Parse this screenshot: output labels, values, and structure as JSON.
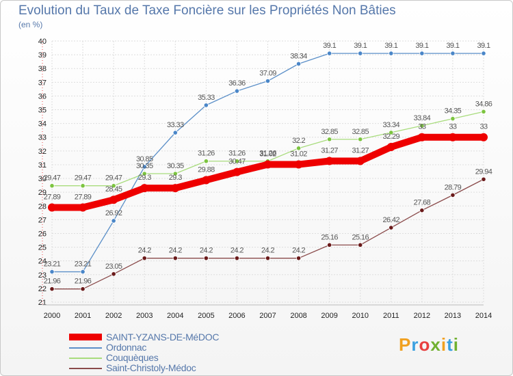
{
  "header": {
    "title": "Evolution du Taux de Taxe Foncière sur les Propriétés Non Bâties",
    "unit": "(en %)"
  },
  "brand": {
    "letters": [
      "P",
      "r",
      "o",
      "x",
      "i",
      "t",
      "i"
    ],
    "colors": [
      "#f0a020",
      "#3aa0e0",
      "#e84040",
      "#70b030",
      "#f0a020",
      "#3aa0e0",
      "#70b030"
    ]
  },
  "chart_data": {
    "type": "line",
    "title": "Evolution du Taux de Taxe Foncière sur les Propriétés Non Bâties",
    "ylabel": "(en %)",
    "xlabel": "",
    "ylim": [
      21,
      40
    ],
    "grid": true,
    "legend": "bottom-left",
    "x": [
      "2000",
      "2001",
      "2002",
      "2003",
      "2004",
      "2005",
      "2006",
      "2007",
      "2008",
      "2009",
      "2010",
      "2011",
      "2012",
      "2013",
      "2014"
    ],
    "series": [
      {
        "name": "Ordonnac",
        "color": "#5b8fc8",
        "marker": "#4a86c8",
        "values": [
          23.21,
          23.21,
          26.92,
          30.85,
          33.33,
          35.33,
          36.36,
          37.09,
          38.34,
          39.1,
          39.1,
          39.1,
          39.1,
          39.1,
          39.1
        ],
        "labels": [
          "23.21",
          "23.21",
          "26.92",
          "30.85",
          "33.33",
          "35.33",
          "36.36",
          "37.09",
          "38.34",
          "39.1",
          "39.1",
          "39.1",
          "39.1",
          "39.1",
          "39.1"
        ]
      },
      {
        "name": "Couquèques",
        "color": "#a8dc7c",
        "marker": "#7cc440",
        "values": [
          29.47,
          29.47,
          29.47,
          30.35,
          30.35,
          31.26,
          31.26,
          31.26,
          32.2,
          32.85,
          32.85,
          33.34,
          33.84,
          34.35,
          34.86
        ],
        "labels": [
          "29.47",
          "29.47",
          "29.47",
          "30.35",
          "30.35",
          "31.26",
          "31.26",
          "31.26",
          "32.2",
          "32.85",
          "32.85",
          "33.34",
          "33.84",
          "34.35",
          "34.86"
        ]
      },
      {
        "name": "Saint-Christoly-Médoc",
        "color": "#8a4a4a",
        "marker": "#6a1a1a",
        "values": [
          21.96,
          21.96,
          23.05,
          24.2,
          24.2,
          24.2,
          24.2,
          24.2,
          24.2,
          25.16,
          25.16,
          26.42,
          27.68,
          28.79,
          29.94
        ],
        "labels": [
          "21.96",
          "21.96",
          "23.05",
          "24.2",
          "24.2",
          "24.2",
          "24.2",
          "24.2",
          "24.2",
          "25.16",
          "25.16",
          "26.42",
          "27.68",
          "28.79",
          "29.94"
        ]
      },
      {
        "name": "SAINT-YZANS-DE-MéDOC",
        "color": "#ee0000",
        "marker": "#ee0000",
        "bold": true,
        "values": [
          27.89,
          27.89,
          28.45,
          29.3,
          29.3,
          29.88,
          30.47,
          31.02,
          31.02,
          31.27,
          31.27,
          32.29,
          33,
          33,
          33
        ],
        "labels": [
          "27.89",
          "27.89",
          "28.45",
          "29.3",
          "29.3",
          "29.88",
          "30.47",
          "31.02",
          "31.02",
          "31.27",
          "31.27",
          "32.29",
          "33",
          "33",
          "33"
        ]
      }
    ],
    "legend_entries": [
      "SAINT-YZANS-DE-MéDOC",
      "Ordonnac",
      "Couquèques",
      "Saint-Christoly-Médoc"
    ]
  }
}
